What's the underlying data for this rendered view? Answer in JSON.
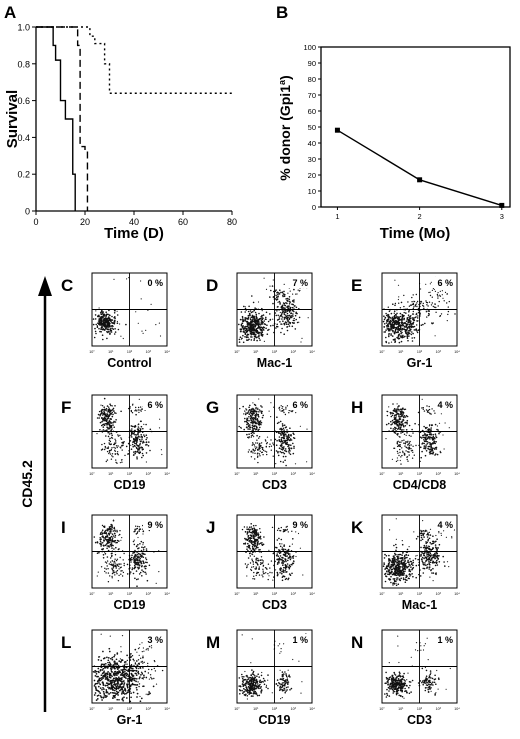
{
  "chart_data": [
    {
      "panel": "A",
      "type": "line",
      "subtype": "step-survival",
      "xlabel": "Time (D)",
      "ylabel": "Survival",
      "xlim": [
        0,
        80
      ],
      "ylim": [
        0,
        1.0
      ],
      "xticks": [
        0,
        20,
        40,
        60,
        80
      ],
      "yticks": [
        0,
        0.2,
        0.4,
        0.6,
        0.8,
        1.0
      ],
      "ytick_labels": [
        "0",
        "0.2",
        "0.4",
        "0.6",
        "0.8",
        "1.0"
      ],
      "series": [
        {
          "style": "solid",
          "x": [
            0,
            7,
            8,
            10,
            12,
            15,
            16
          ],
          "y": [
            1.0,
            0.9,
            0.82,
            0.6,
            0.5,
            0.2,
            0
          ]
        },
        {
          "style": "dashed",
          "x": [
            0,
            17,
            18,
            20,
            21
          ],
          "y": [
            1.0,
            0.9,
            0.35,
            0.33,
            0
          ]
        },
        {
          "style": "dotted",
          "x": [
            0,
            22,
            24,
            28,
            30,
            80
          ],
          "y": [
            1.0,
            0.95,
            0.91,
            0.8,
            0.64,
            0.64
          ]
        }
      ]
    },
    {
      "panel": "B",
      "type": "line",
      "xlabel": "Time (Mo)",
      "ylabel_main": "% donor (Gpi1",
      "ylabel_sup": "a",
      "ylabel_end": ")",
      "xlim": [
        0.8,
        3.1
      ],
      "ylim": [
        0,
        100
      ],
      "xticks": [
        1,
        2,
        3
      ],
      "yticks": [
        0,
        10,
        20,
        30,
        40,
        50,
        60,
        70,
        80,
        90,
        100
      ],
      "x": [
        1,
        2,
        3
      ],
      "y": [
        48,
        17,
        1
      ]
    }
  ],
  "flow_axis_label": "CD45.2",
  "flow_panels": [
    {
      "letter": "C",
      "label": "Control",
      "percent": "0 %",
      "pattern": "control"
    },
    {
      "letter": "D",
      "label": "Mac-1",
      "percent": "7 %",
      "pattern": "mac1"
    },
    {
      "letter": "E",
      "label": "Gr-1",
      "percent": "6 %",
      "pattern": "gr1"
    },
    {
      "letter": "F",
      "label": "CD19",
      "percent": "6 %",
      "pattern": "lymph"
    },
    {
      "letter": "G",
      "label": "CD3",
      "percent": "6 %",
      "pattern": "lymph"
    },
    {
      "letter": "H",
      "label": "CD4/CD8",
      "percent": "4 %",
      "pattern": "lymph"
    },
    {
      "letter": "I",
      "label": "CD19",
      "percent": "9 %",
      "pattern": "lymph"
    },
    {
      "letter": "J",
      "label": "CD3",
      "percent": "9 %",
      "pattern": "lymph"
    },
    {
      "letter": "K",
      "label": "Mac-1",
      "percent": "4 %",
      "pattern": "mac1"
    },
    {
      "letter": "L",
      "label": "Gr-1",
      "percent": "3 %",
      "pattern": "gr1dense"
    },
    {
      "letter": "M",
      "label": "CD19",
      "percent": "1 %",
      "pattern": "low"
    },
    {
      "letter": "N",
      "label": "CD3",
      "percent": "1 %",
      "pattern": "low"
    }
  ],
  "flow_tick_labels": [
    "10°",
    "10¹",
    "10²",
    "10³",
    "10⁴"
  ]
}
